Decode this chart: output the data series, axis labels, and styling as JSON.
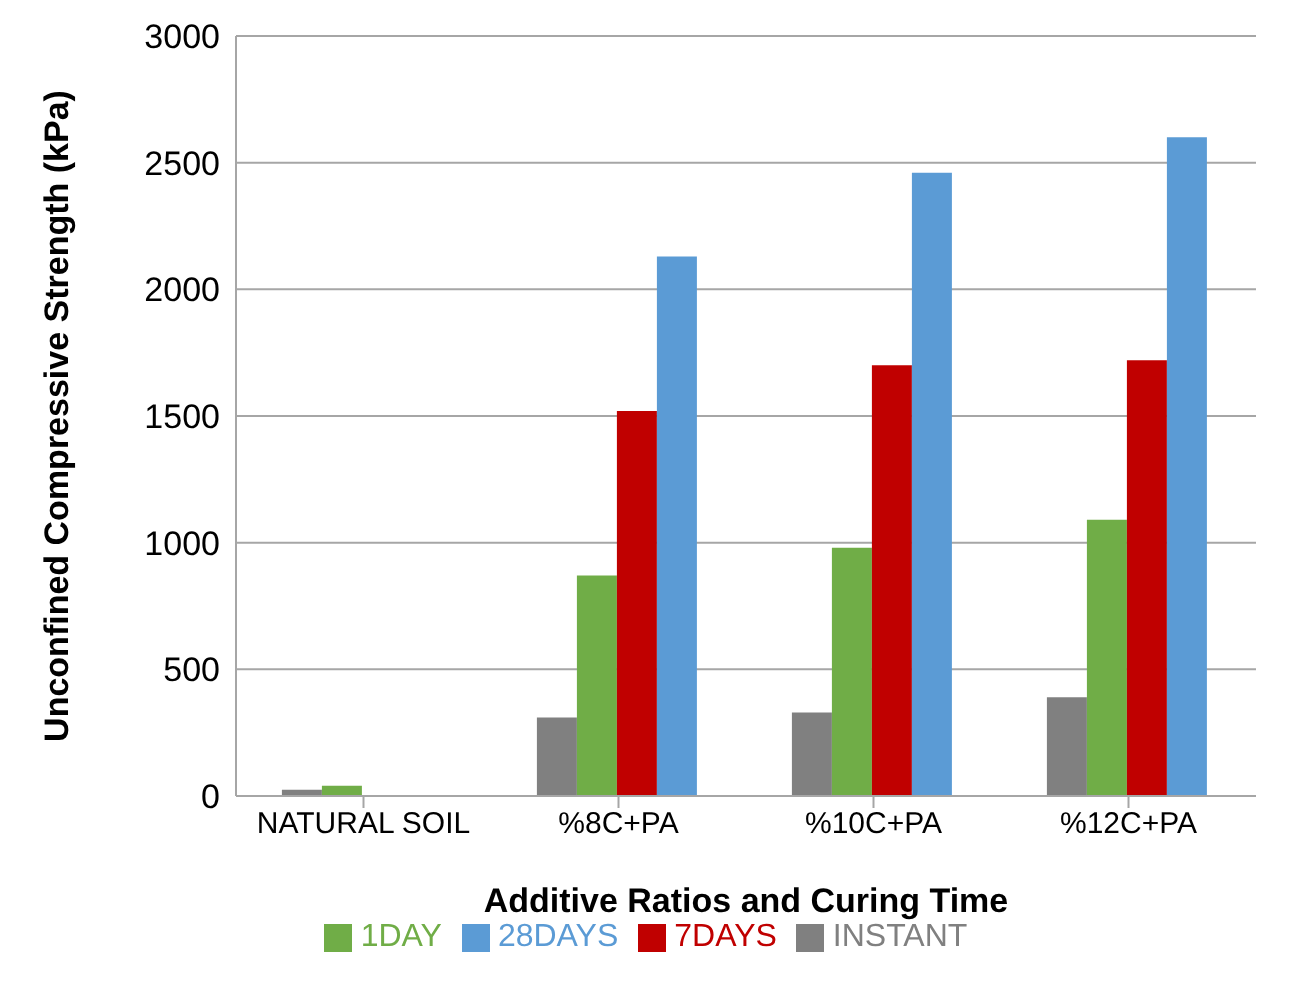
{
  "chart_data": {
    "type": "bar",
    "xlabel": "Additive Ratios and Curing Time",
    "ylabel": "Unconfined Compressive Strength (kPa)",
    "categories": [
      "NATURAL SOIL",
      "%8C+PA",
      "%10C+PA",
      "%12C+PA"
    ],
    "series": [
      {
        "name": "INSTANT",
        "color": "#808080",
        "values": [
          25,
          310,
          330,
          390
        ]
      },
      {
        "name": "1DAY",
        "color": "#70ad47",
        "values": [
          40,
          870,
          980,
          1090
        ]
      },
      {
        "name": "7DAYS",
        "color": "#c00000",
        "values": [
          null,
          1520,
          1700,
          1720
        ]
      },
      {
        "name": "28DAYS",
        "color": "#5b9bd5",
        "values": [
          null,
          2130,
          2460,
          2600
        ]
      }
    ],
    "ylim": [
      0,
      3000
    ],
    "yticks": [
      0,
      500,
      1000,
      1500,
      2000,
      2500,
      3000
    ],
    "grid": "y",
    "legend": "bottom"
  }
}
